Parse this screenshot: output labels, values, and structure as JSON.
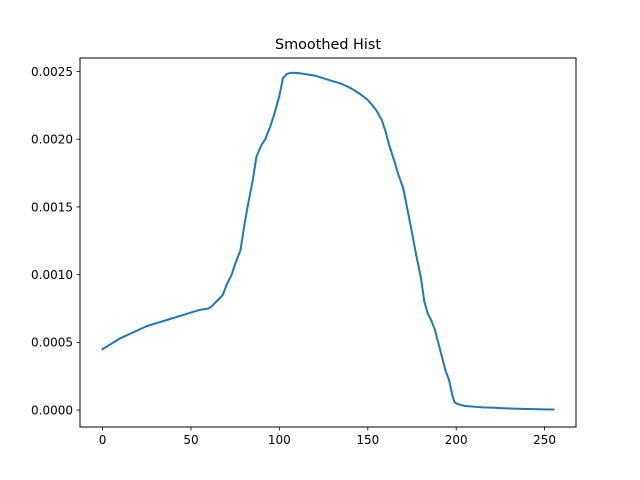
{
  "chart_data": {
    "type": "line",
    "title": "Smoothed Hist",
    "xlabel": "",
    "ylabel": "",
    "xlim": [
      -12.75,
      267.75
    ],
    "ylim": [
      -0.000125,
      0.0026
    ],
    "grid": false,
    "x_ticks": [
      0,
      50,
      100,
      150,
      200,
      250
    ],
    "x_tick_labels": [
      "0",
      "50",
      "100",
      "150",
      "200",
      "250"
    ],
    "y_ticks": [
      0.0,
      0.0005,
      0.001,
      0.0015,
      0.002,
      0.0025
    ],
    "y_tick_labels": [
      "0.0000",
      "0.0005",
      "0.0010",
      "0.0015",
      "0.0020",
      "0.0025"
    ],
    "series": [
      {
        "color": "#1f77b4",
        "x": [
          0,
          5,
          10,
          15,
          20,
          25,
          30,
          35,
          40,
          45,
          50,
          55,
          60,
          62,
          65,
          68,
          70,
          73,
          75,
          78,
          80,
          82,
          85,
          87,
          90,
          92,
          95,
          97,
          100,
          102,
          104,
          106,
          108,
          110,
          115,
          120,
          125,
          130,
          135,
          140,
          145,
          150,
          152,
          155,
          158,
          160,
          162,
          165,
          167,
          170,
          172,
          175,
          177,
          180,
          182,
          184,
          186,
          188,
          190,
          192,
          194,
          196,
          198,
          199,
          200,
          202,
          205,
          210,
          215,
          220,
          230,
          240,
          250,
          255
        ],
        "y": [
          0.00045,
          0.00049,
          0.00053,
          0.00056,
          0.00059,
          0.00062,
          0.00064,
          0.00066,
          0.00068,
          0.0007,
          0.00072,
          0.00074,
          0.00075,
          0.00077,
          0.00081,
          0.00085,
          0.00092,
          0.001,
          0.00108,
          0.00118,
          0.00135,
          0.0015,
          0.0017,
          0.00187,
          0.00196,
          0.002,
          0.0021,
          0.00218,
          0.00232,
          0.00245,
          0.00248,
          0.00249,
          0.00249,
          0.00249,
          0.00248,
          0.00247,
          0.00245,
          0.00243,
          0.00241,
          0.00238,
          0.00234,
          0.00229,
          0.00226,
          0.00221,
          0.00214,
          0.00206,
          0.00196,
          0.00184,
          0.00175,
          0.00164,
          0.00151,
          0.00131,
          0.00117,
          0.00098,
          0.0008,
          0.00071,
          0.00066,
          0.00059,
          0.00049,
          0.00039,
          0.00029,
          0.00022,
          0.0001,
          6e-05,
          5e-05,
          4e-05,
          3e-05,
          2.5e-05,
          2e-05,
          1.8e-05,
          1.2e-05,
          8e-06,
          5e-06,
          4e-06
        ]
      }
    ]
  }
}
